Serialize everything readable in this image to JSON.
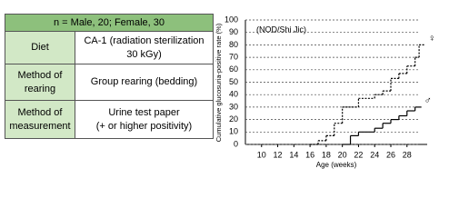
{
  "table": {
    "header": "n = Male, 20; Female, 30",
    "rows": [
      [
        "Diet",
        "CA-1 (radiation sterilization\n30 kGy)"
      ],
      [
        "Method of\nrearing",
        "Group rearing (bedding)"
      ],
      [
        "Method of\nmeasurement",
        "Urine test paper\n(+ or higher positivity)"
      ]
    ]
  },
  "chart_data": {
    "type": "step",
    "annotation": "(NOD/Shi Jic)",
    "x_label": "Age (weeks)",
    "y_label": "Cumulative glucosuria-positive rate (%)",
    "xlim": [
      8,
      30.5
    ],
    "ylim": [
      0,
      100
    ],
    "xticks": [
      10,
      12,
      14,
      16,
      18,
      20,
      22,
      24,
      26,
      28
    ],
    "yticks": [
      0,
      10,
      20,
      30,
      40,
      50,
      60,
      70,
      80,
      90,
      100
    ],
    "grid": true,
    "series": [
      {
        "name": "♀",
        "color": "#000000",
        "dashed": true,
        "x": [
          16,
          17,
          18,
          19,
          20,
          22,
          24,
          25,
          26,
          27,
          28,
          29,
          29.5
        ],
        "values": [
          0,
          3,
          7,
          17,
          30,
          37,
          40,
          43,
          53,
          57,
          63,
          70,
          80
        ]
      },
      {
        "name": "♂",
        "color": "#000000",
        "dashed": false,
        "x": [
          20,
          21,
          22,
          24,
          25,
          26,
          27,
          28,
          29
        ],
        "values": [
          0,
          7,
          10,
          13,
          17,
          20,
          23,
          27,
          30
        ]
      }
    ]
  }
}
